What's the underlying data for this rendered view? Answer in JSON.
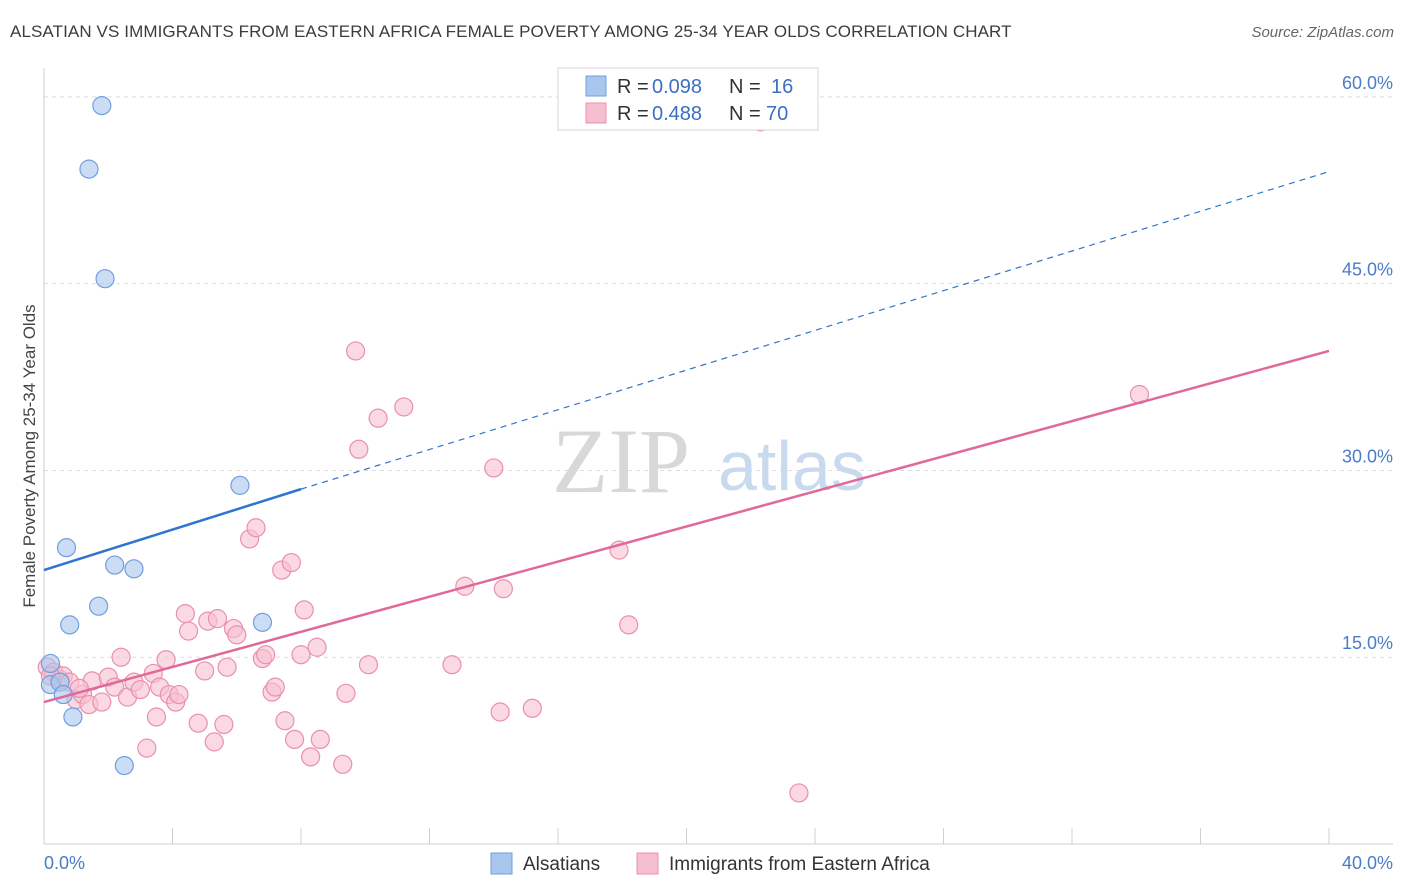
{
  "chart_data": {
    "type": "scatter",
    "title": "ALSATIAN VS IMMIGRANTS FROM EASTERN AFRICA FEMALE POVERTY AMONG 25-34 YEAR OLDS CORRELATION CHART",
    "source": "Source: ZipAtlas.com",
    "xlabel": "",
    "ylabel": "Female Poverty Among 25-34 Year Olds",
    "xlim": [
      0,
      40
    ],
    "ylim": [
      0,
      62
    ],
    "x_tick_labels": {
      "left": "0.0%",
      "right": "40.0%"
    },
    "y_ticks": [
      {
        "value": 15,
        "label": "15.0%"
      },
      {
        "value": 30,
        "label": "30.0%"
      },
      {
        "value": 45,
        "label": "45.0%"
      },
      {
        "value": 60,
        "label": "60.0%"
      }
    ],
    "watermark": {
      "zip": "ZIP",
      "atlas": "atlas"
    },
    "legend": {
      "r_label": "R = ",
      "n_label": "N = ",
      "entries": [
        {
          "r": "0.098",
          "n": "16"
        },
        {
          "r": "0.488",
          "n": "70"
        }
      ]
    },
    "series": [
      {
        "name": "Alsatians",
        "color": "#a9c6ef",
        "stroke": "#6f9fdc",
        "line_color": "#2f74cf",
        "trend": {
          "x0": 0,
          "y0": 22.0,
          "x_solid_end": 8.0,
          "y_solid_end": 28.5,
          "x1": 40,
          "y1": 54.0
        },
        "points": [
          [
            0.2,
            14.5
          ],
          [
            0.2,
            12.8
          ],
          [
            0.5,
            13.0
          ],
          [
            0.6,
            12.0
          ],
          [
            0.7,
            23.8
          ],
          [
            0.8,
            17.6
          ],
          [
            0.9,
            10.2
          ],
          [
            1.4,
            54.2
          ],
          [
            1.7,
            19.1
          ],
          [
            1.9,
            45.4
          ],
          [
            2.2,
            22.4
          ],
          [
            2.5,
            6.3
          ],
          [
            2.8,
            22.1
          ],
          [
            6.1,
            28.8
          ],
          [
            6.8,
            17.8
          ],
          [
            1.8,
            59.3
          ]
        ]
      },
      {
        "name": "Immigrants from Eastern Africa",
        "color": "#f6bfd0",
        "stroke": "#ea8fae",
        "line_color": "#e0689a",
        "trend": {
          "x0": 0,
          "y0": 11.4,
          "x1": 40,
          "y1": 39.6
        },
        "points": [
          [
            0.1,
            14.2
          ],
          [
            0.3,
            13.8
          ],
          [
            0.5,
            13.2
          ],
          [
            0.6,
            13.5
          ],
          [
            0.8,
            13.0
          ],
          [
            1.0,
            11.6
          ],
          [
            1.2,
            12.0
          ],
          [
            1.4,
            11.2
          ],
          [
            1.5,
            13.1
          ],
          [
            1.8,
            11.4
          ],
          [
            2.0,
            13.4
          ],
          [
            2.2,
            12.6
          ],
          [
            2.4,
            15.0
          ],
          [
            2.6,
            11.8
          ],
          [
            2.8,
            13.0
          ],
          [
            3.0,
            12.4
          ],
          [
            3.2,
            7.7
          ],
          [
            3.4,
            13.7
          ],
          [
            3.5,
            10.2
          ],
          [
            3.6,
            12.6
          ],
          [
            3.8,
            14.8
          ],
          [
            3.9,
            12.0
          ],
          [
            4.1,
            11.4
          ],
          [
            4.2,
            12.0
          ],
          [
            4.4,
            18.5
          ],
          [
            4.5,
            17.1
          ],
          [
            4.8,
            9.7
          ],
          [
            5.0,
            13.9
          ],
          [
            5.1,
            17.9
          ],
          [
            5.3,
            8.2
          ],
          [
            5.4,
            18.1
          ],
          [
            5.6,
            9.6
          ],
          [
            5.7,
            14.2
          ],
          [
            5.9,
            17.3
          ],
          [
            6.0,
            16.8
          ],
          [
            6.4,
            24.5
          ],
          [
            6.6,
            25.4
          ],
          [
            6.8,
            14.9
          ],
          [
            6.9,
            15.2
          ],
          [
            7.1,
            12.2
          ],
          [
            7.2,
            12.6
          ],
          [
            7.4,
            22.0
          ],
          [
            7.5,
            9.9
          ],
          [
            7.7,
            22.6
          ],
          [
            7.8,
            8.4
          ],
          [
            8.0,
            15.2
          ],
          [
            8.1,
            18.8
          ],
          [
            8.3,
            7.0
          ],
          [
            8.5,
            15.8
          ],
          [
            8.6,
            8.4
          ],
          [
            9.3,
            6.4
          ],
          [
            9.4,
            12.1
          ],
          [
            9.7,
            39.6
          ],
          [
            9.8,
            31.7
          ],
          [
            10.1,
            14.4
          ],
          [
            10.4,
            34.2
          ],
          [
            11.2,
            35.1
          ],
          [
            12.7,
            14.4
          ],
          [
            13.1,
            20.7
          ],
          [
            14.0,
            30.2
          ],
          [
            14.2,
            10.6
          ],
          [
            14.3,
            20.5
          ],
          [
            15.2,
            10.9
          ],
          [
            17.9,
            23.6
          ],
          [
            18.2,
            17.6
          ],
          [
            23.5,
            4.1
          ],
          [
            34.1,
            36.1
          ],
          [
            22.3,
            58.0
          ],
          [
            0.2,
            13.5
          ],
          [
            1.1,
            12.5
          ]
        ]
      }
    ]
  }
}
